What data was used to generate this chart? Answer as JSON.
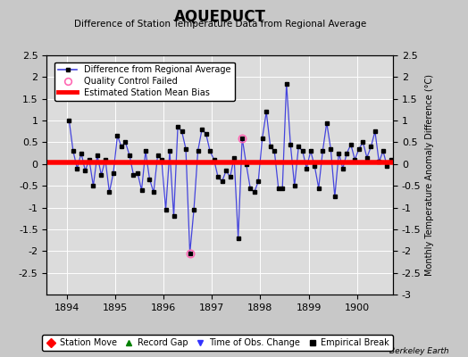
{
  "title": "AQUEDUCT",
  "subtitle": "Difference of Station Temperature Data from Regional Average",
  "ylabel_right": "Monthly Temperature Anomaly Difference (°C)",
  "xlim": [
    1893.58,
    1900.75
  ],
  "ylim": [
    -3,
    2.5
  ],
  "yticks_left": [
    -2.5,
    -2,
    -1.5,
    -1,
    -0.5,
    0,
    0.5,
    1,
    1.5,
    2,
    2.5
  ],
  "yticks_right": [
    -3,
    -2.5,
    -2,
    -1.5,
    -1,
    -0.5,
    0,
    0.5,
    1,
    1.5,
    2,
    2.5
  ],
  "xticks": [
    1894,
    1895,
    1896,
    1897,
    1898,
    1899,
    1900
  ],
  "bias_value": 0.03,
  "line_color": "#4444dd",
  "marker_color": "black",
  "bias_color": "red",
  "qc_fail_color": "#ff69b4",
  "background_color": "#dcdcdc",
  "fig_background": "#c8c8c8",
  "watermark": "Berkeley Earth",
  "months": [
    1894.042,
    1894.125,
    1894.208,
    1894.292,
    1894.375,
    1894.458,
    1894.542,
    1894.625,
    1894.708,
    1894.792,
    1894.875,
    1894.958,
    1895.042,
    1895.125,
    1895.208,
    1895.292,
    1895.375,
    1895.458,
    1895.542,
    1895.625,
    1895.708,
    1895.792,
    1895.875,
    1895.958,
    1896.042,
    1896.125,
    1896.208,
    1896.292,
    1896.375,
    1896.458,
    1896.542,
    1896.625,
    1896.708,
    1896.792,
    1896.875,
    1896.958,
    1897.042,
    1897.125,
    1897.208,
    1897.292,
    1897.375,
    1897.458,
    1897.542,
    1897.625,
    1897.708,
    1897.792,
    1897.875,
    1897.958,
    1898.042,
    1898.125,
    1898.208,
    1898.292,
    1898.375,
    1898.458,
    1898.542,
    1898.625,
    1898.708,
    1898.792,
    1898.875,
    1898.958,
    1899.042,
    1899.125,
    1899.208,
    1899.292,
    1899.375,
    1899.458,
    1899.542,
    1899.625,
    1899.708,
    1899.792,
    1899.875,
    1899.958,
    1900.042,
    1900.125,
    1900.208,
    1900.292,
    1900.375,
    1900.458,
    1900.542,
    1900.625,
    1900.708
  ],
  "values": [
    1.0,
    0.3,
    -0.1,
    0.25,
    -0.15,
    0.1,
    -0.5,
    0.2,
    -0.25,
    0.1,
    -0.65,
    -0.2,
    0.65,
    0.4,
    0.5,
    0.2,
    -0.25,
    -0.2,
    -0.6,
    0.3,
    -0.35,
    -0.65,
    0.2,
    0.1,
    -1.05,
    0.3,
    -1.2,
    0.85,
    0.75,
    0.35,
    -2.05,
    -1.05,
    0.3,
    0.8,
    0.7,
    0.3,
    0.1,
    -0.3,
    -0.4,
    -0.15,
    -0.3,
    0.15,
    -1.7,
    0.6,
    0.0,
    -0.55,
    -0.65,
    -0.4,
    0.6,
    1.2,
    0.4,
    0.3,
    -0.55,
    -0.55,
    1.85,
    0.45,
    -0.5,
    0.4,
    0.3,
    -0.1,
    0.3,
    -0.05,
    -0.55,
    0.3,
    0.95,
    0.35,
    -0.75,
    0.25,
    -0.1,
    0.25,
    0.45,
    0.1,
    0.35,
    0.5,
    0.15,
    0.4,
    0.75,
    0.05,
    0.3,
    -0.05,
    0.1
  ],
  "qc_failed_indices": [
    30,
    43
  ],
  "bottom_legend": [
    {
      "label": "Station Move",
      "color": "red",
      "marker": "D"
    },
    {
      "label": "Record Gap",
      "color": "green",
      "marker": "^"
    },
    {
      "label": "Time of Obs. Change",
      "color": "#3333ff",
      "marker": "v"
    },
    {
      "label": "Empirical Break",
      "color": "black",
      "marker": "s"
    }
  ]
}
